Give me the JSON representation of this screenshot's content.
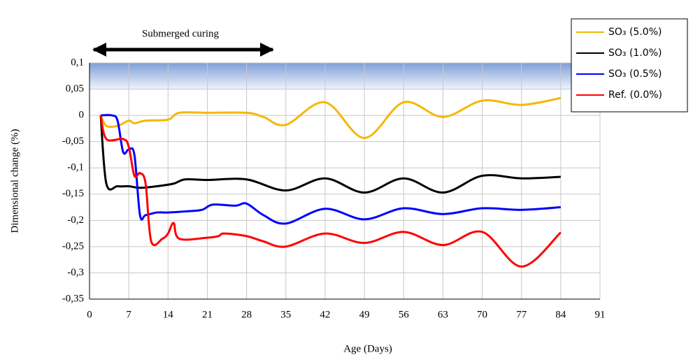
{
  "chart_data": {
    "type": "line",
    "y_label": "Dimensional  change (%)",
    "x_label": "Age (Days)",
    "annotation": "Submerged curing",
    "xlim": [
      0,
      91
    ],
    "xticks": [
      0,
      7,
      14,
      21,
      28,
      35,
      42,
      49,
      56,
      63,
      70,
      77,
      84,
      91
    ],
    "ylim": [
      -0.35,
      0.1
    ],
    "yticks": [
      {
        "value": -0.35,
        "label": "-0,35"
      },
      {
        "value": -0.3,
        "label": "-0,3"
      },
      {
        "value": -0.25,
        "label": "-0,25"
      },
      {
        "value": -0.2,
        "label": "-0,2"
      },
      {
        "value": -0.15,
        "label": "-0,15"
      },
      {
        "value": -0.1,
        "label": "-0,1"
      },
      {
        "value": -0.05,
        "label": "-0,05"
      },
      0,
      {
        "value": 0.05,
        "label": "0,05"
      },
      {
        "value": 0.1,
        "label": "0,1"
      }
    ],
    "grid": true,
    "legend": "upper right",
    "series": [
      {
        "name": "SO₃ (5.0%)",
        "color": "#f5b800",
        "x": [
          2,
          3,
          5,
          7,
          8,
          10,
          14,
          16,
          21,
          28,
          31,
          35,
          42,
          49,
          56,
          63,
          70,
          77,
          84
        ],
        "values": [
          0,
          -0.02,
          -0.02,
          -0.01,
          -0.015,
          -0.01,
          -0.008,
          0.005,
          0.005,
          0.005,
          -0.003,
          -0.018,
          0.025,
          -0.043,
          0.025,
          -0.003,
          0.028,
          0.02,
          0.033
        ]
      },
      {
        "name": "SO₃ (1.0%)",
        "color": "#000000",
        "x": [
          2,
          3,
          5,
          7,
          9,
          12,
          15,
          17,
          21,
          28,
          35,
          42,
          49,
          56,
          63,
          70,
          77,
          84
        ],
        "values": [
          0,
          -0.13,
          -0.135,
          -0.135,
          -0.138,
          -0.135,
          -0.13,
          -0.122,
          -0.123,
          -0.122,
          -0.143,
          -0.12,
          -0.147,
          -0.12,
          -0.147,
          -0.115,
          -0.12,
          -0.117
        ]
      },
      {
        "name": "SO₃ (0.5%)",
        "color": "#0000ff",
        "x": [
          2,
          4,
          5,
          6,
          7,
          8,
          9,
          10,
          12,
          14,
          17,
          20,
          22,
          26,
          28,
          31,
          35,
          42,
          49,
          56,
          63,
          70,
          77,
          84
        ],
        "values": [
          0,
          0,
          -0.01,
          -0.07,
          -0.065,
          -0.075,
          -0.19,
          -0.19,
          -0.185,
          -0.185,
          -0.183,
          -0.18,
          -0.17,
          -0.172,
          -0.168,
          -0.19,
          -0.206,
          -0.178,
          -0.198,
          -0.177,
          -0.188,
          -0.177,
          -0.18,
          -0.175
        ]
      },
      {
        "name": "Ref. (0.0%)",
        "color": "#ff0000",
        "x": [
          2,
          3,
          6,
          7,
          8,
          9,
          10,
          11,
          13,
          14,
          15,
          16,
          21,
          23,
          24,
          28,
          31,
          35,
          42,
          49,
          56,
          63,
          70,
          77,
          84
        ],
        "values": [
          0,
          -0.045,
          -0.045,
          -0.06,
          -0.115,
          -0.11,
          -0.13,
          -0.24,
          -0.235,
          -0.225,
          -0.205,
          -0.235,
          -0.233,
          -0.23,
          -0.225,
          -0.23,
          -0.24,
          -0.25,
          -0.225,
          -0.243,
          -0.222,
          -0.247,
          -0.222,
          -0.288,
          -0.223
        ]
      }
    ]
  }
}
